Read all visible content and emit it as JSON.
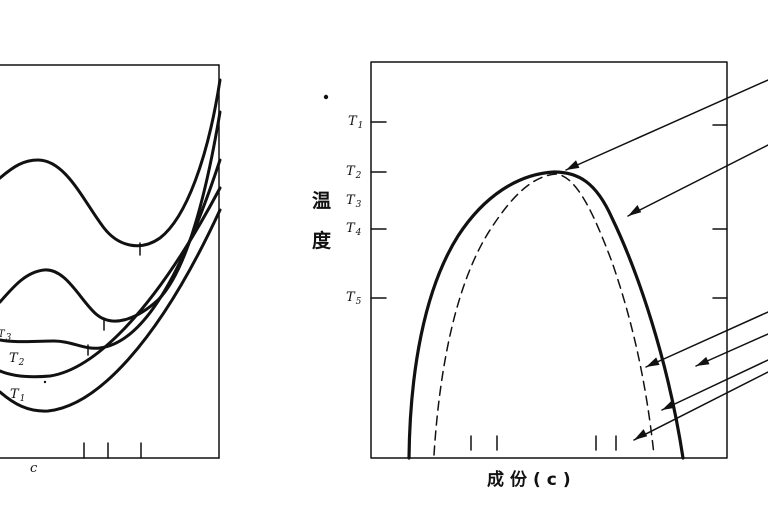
{
  "left_panel": {
    "curve_labels": [
      "T3",
      "T2",
      "T1"
    ],
    "x_mark": "c"
  },
  "right_panel": {
    "y_axis_label_chars": [
      "温",
      "度"
    ],
    "x_axis_label": "成份(c)",
    "temperature_ticks": [
      "T1",
      "T2",
      "T3",
      "T4",
      "T5"
    ],
    "curves": [
      {
        "name": "solvus-solid",
        "style": "solid"
      },
      {
        "name": "spinodal-dashed",
        "style": "dashed"
      }
    ],
    "arrow_count": 6
  }
}
